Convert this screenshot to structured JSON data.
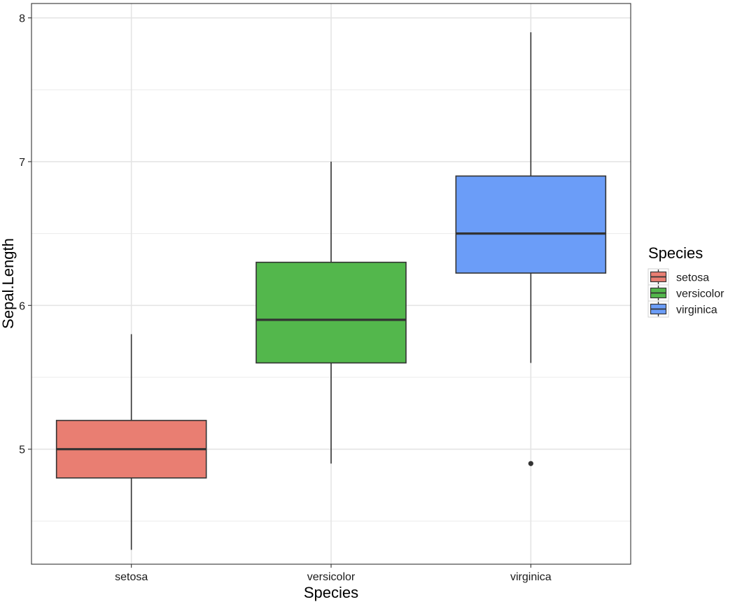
{
  "chart_data": {
    "type": "boxplot",
    "title": "",
    "xlabel": "Species",
    "ylabel": "Sepal.Length",
    "ylim": [
      4.2,
      8.1
    ],
    "y_ticks": [
      5,
      6,
      7,
      8
    ],
    "y_tick_labels": [
      "5",
      "6",
      "7",
      "8"
    ],
    "grid": true,
    "legend": {
      "title": "Species",
      "placement": "right"
    },
    "categories": [
      "setosa",
      "versicolor",
      "virginica"
    ],
    "boxes": [
      {
        "name": "setosa",
        "color": "#E97E72",
        "whisker_low": 4.3,
        "q1": 4.8,
        "median": 5.0,
        "q3": 5.2,
        "whisker_high": 5.8,
        "outliers": []
      },
      {
        "name": "versicolor",
        "color": "#53B74C",
        "whisker_low": 4.9,
        "q1": 5.6,
        "median": 5.9,
        "q3": 6.3,
        "whisker_high": 7.0,
        "outliers": []
      },
      {
        "name": "virginica",
        "color": "#6B9DF8",
        "whisker_low": 5.6,
        "q1": 6.225,
        "median": 6.5,
        "q3": 6.9,
        "whisker_high": 7.9,
        "outliers": [
          4.9
        ]
      }
    ]
  }
}
